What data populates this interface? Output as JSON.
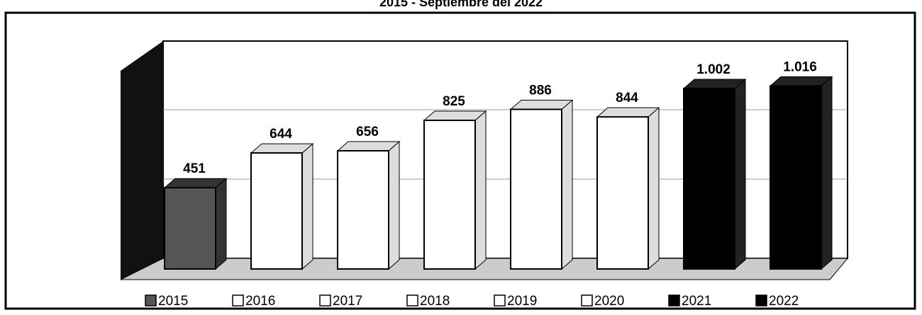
{
  "chart_data": {
    "type": "bar3d",
    "title": "2015 - Septiembre del 2022",
    "categories": [
      "2015",
      "2016",
      "2017",
      "2018",
      "2019",
      "2020",
      "2021",
      "2022"
    ],
    "values": [
      451,
      644,
      656,
      825,
      886,
      844,
      1002,
      1016
    ],
    "value_labels": [
      "451",
      "644",
      "656",
      "825",
      "886",
      "844",
      "1.002",
      "1.016"
    ],
    "colors": [
      "#555555",
      "#ffffff",
      "#ffffff",
      "#ffffff",
      "#ffffff",
      "#ffffff",
      "#000000",
      "#000000"
    ],
    "ylim": [
      0,
      1100
    ]
  }
}
